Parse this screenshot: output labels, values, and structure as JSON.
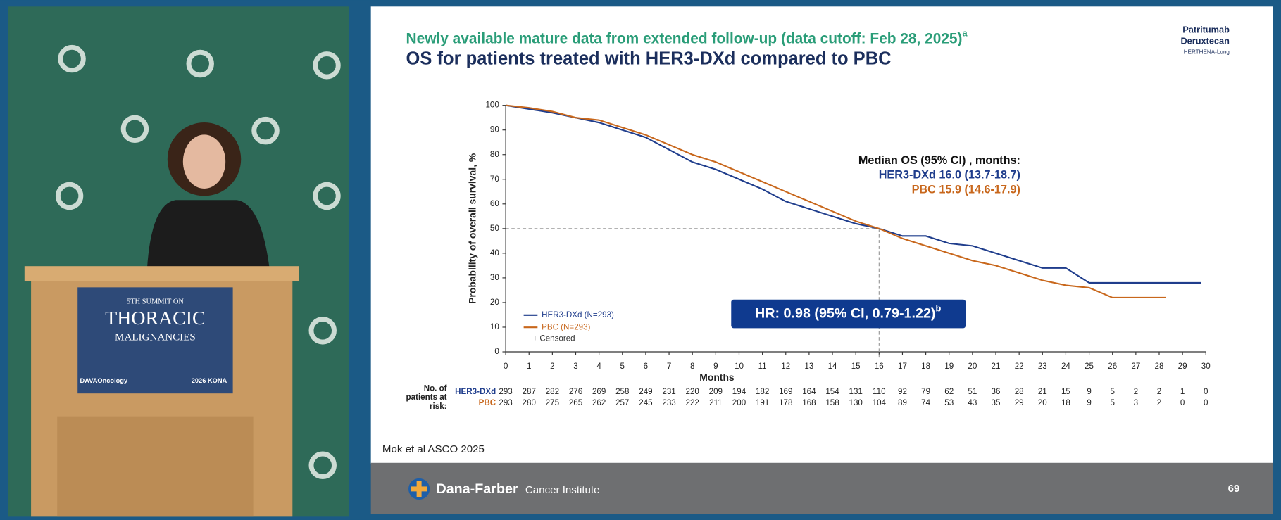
{
  "slide": {
    "kicker": "Newly available mature data from extended follow-up (data cutoff: Feb 28, 2025)",
    "kicker_sup": "a",
    "title": "OS for patients treated with HER3-DXd compared to PBC",
    "logo": [
      "Patritumab",
      "Deruxtecan",
      "HERTHENA-Lung"
    ],
    "citation": "Mok et al ASCO 2025",
    "footer_brand": "Dana-Farber",
    "footer_sub": "Cancer Institute",
    "page_number": "69"
  },
  "podium": {
    "line1": "5TH SUMMIT ON",
    "line2": "THORACIC",
    "line3": "MALIGNANCIES",
    "brand": "DAVAOncology",
    "event": "2026 KONA"
  },
  "chart_data": {
    "type": "line",
    "y_label": "Probability of overall survival, %",
    "x_label": "Months",
    "xlim": [
      0,
      30
    ],
    "xticks": [
      0,
      1,
      2,
      3,
      4,
      5,
      6,
      7,
      8,
      9,
      10,
      11,
      12,
      13,
      14,
      15,
      16,
      17,
      18,
      19,
      20,
      21,
      22,
      23,
      24,
      25,
      26,
      27,
      28,
      29,
      30
    ],
    "ylim": [
      0,
      100
    ],
    "yticks": [
      0,
      10,
      20,
      30,
      40,
      50,
      60,
      70,
      80,
      90,
      100
    ],
    "median_line": {
      "x": 16,
      "y": 50
    },
    "legend_corner": "lower-left",
    "censored_label": "+ Censored",
    "series": [
      {
        "name": "HER3-DXd (N=293)",
        "color": "#1f3d8c",
        "x": [
          0,
          1,
          2,
          3,
          4,
          5,
          6,
          7,
          8,
          9,
          10,
          11,
          12,
          13,
          14,
          15,
          16,
          17,
          18,
          19,
          20,
          21,
          22,
          23,
          24,
          25,
          26,
          27,
          28,
          29,
          29.8
        ],
        "values": [
          100,
          98.5,
          97,
          95,
          93,
          90,
          87,
          82,
          77,
          74,
          70,
          66,
          61,
          58,
          55,
          52,
          50,
          47,
          47,
          44,
          43,
          40,
          37,
          34,
          34,
          28,
          28,
          28,
          28,
          28,
          28
        ]
      },
      {
        "name": "PBC (N=293)",
        "color": "#c8671c",
        "x": [
          0,
          1,
          2,
          3,
          4,
          5,
          6,
          7,
          8,
          9,
          10,
          11,
          12,
          13,
          14,
          15,
          16,
          17,
          18,
          19,
          20,
          21,
          22,
          23,
          24,
          25,
          26,
          27,
          28,
          28.3
        ],
        "values": [
          100,
          99,
          97.5,
          95,
          94,
          91,
          88,
          84,
          80,
          77,
          73,
          69,
          65,
          61,
          57,
          53,
          50,
          46,
          43,
          40,
          37,
          35,
          32,
          29,
          27,
          26,
          22,
          22,
          22,
          22
        ]
      }
    ],
    "median_title": "Median OS (95% CI) , months:",
    "median_rows": [
      "HER3-DXd 16.0 (13.7-18.7)",
      "PBC 15.9 (14.6-17.9)"
    ],
    "hr_text": "HR: 0.98 (95% CI, 0.79-1.22)",
    "hr_sup": "b",
    "risk_table": {
      "label": [
        "No. of",
        "patients at",
        "risk:"
      ],
      "rows": [
        {
          "name": "HER3-DXd",
          "values": [
            293,
            287,
            282,
            276,
            269,
            258,
            249,
            231,
            220,
            209,
            194,
            182,
            169,
            164,
            154,
            131,
            110,
            92,
            79,
            62,
            51,
            36,
            28,
            21,
            15,
            9,
            5,
            2,
            2,
            1,
            0
          ]
        },
        {
          "name": "PBC",
          "values": [
            293,
            280,
            275,
            265,
            262,
            257,
            245,
            233,
            222,
            211,
            200,
            191,
            178,
            168,
            158,
            130,
            104,
            89,
            74,
            53,
            43,
            35,
            29,
            20,
            18,
            9,
            5,
            3,
            2,
            0,
            0
          ]
        }
      ]
    }
  }
}
